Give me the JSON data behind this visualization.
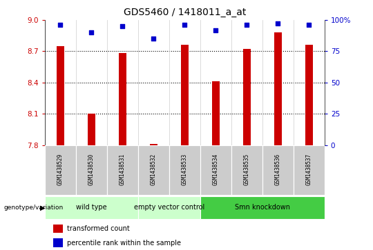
{
  "title": "GDS5460 / 1418011_a_at",
  "samples": [
    "GSM1438529",
    "GSM1438530",
    "GSM1438531",
    "GSM1438532",
    "GSM1438533",
    "GSM1438534",
    "GSM1438535",
    "GSM1438536",
    "GSM1438537"
  ],
  "transformed_counts": [
    8.75,
    8.1,
    8.68,
    7.81,
    8.76,
    8.41,
    8.72,
    8.88,
    8.76
  ],
  "percentile_ranks": [
    96,
    90,
    95,
    85,
    96,
    92,
    96,
    97,
    96
  ],
  "ylim_left": [
    7.8,
    9.0
  ],
  "ylim_right": [
    0,
    100
  ],
  "yticks_left": [
    7.8,
    8.1,
    8.4,
    8.7,
    9.0
  ],
  "yticks_right": [
    0,
    25,
    50,
    75,
    100
  ],
  "ytick_labels_right": [
    "0",
    "25",
    "50",
    "75",
    "100%"
  ],
  "bar_color": "#cc0000",
  "dot_color": "#0000cc",
  "groups": [
    {
      "label": "wild type",
      "indices": [
        0,
        1,
        2
      ],
      "color_light": "#ccffcc",
      "color_dark": "#ccffcc"
    },
    {
      "label": "empty vector control",
      "indices": [
        3,
        4
      ],
      "color_light": "#ccffcc",
      "color_dark": "#ccffcc"
    },
    {
      "label": "Smn knockdown",
      "indices": [
        5,
        6,
        7,
        8
      ],
      "color_light": "#44cc44",
      "color_dark": "#44cc44"
    }
  ],
  "group_label_text": "genotype/variation",
  "grid_dotted_at": [
    8.1,
    8.4,
    8.7
  ],
  "bar_color_hex": "#cc0000",
  "dot_color_hex": "#0000cc",
  "axis_color_left": "#cc0000",
  "axis_color_right": "#0000cc",
  "sample_box_color": "#cccccc",
  "bar_width": 0.25
}
